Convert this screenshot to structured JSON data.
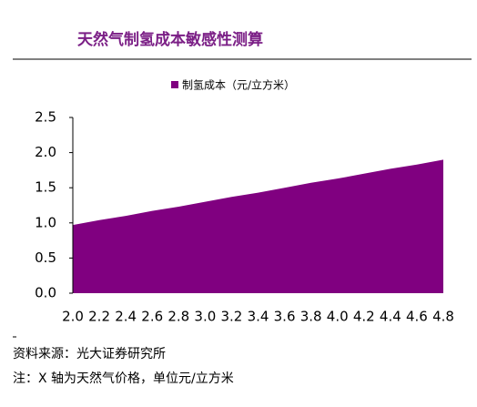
{
  "chart_data": {
    "type": "area",
    "title": "天然气制氢成本敏感性测算",
    "categories": [
      "2.0",
      "2.2",
      "2.4",
      "2.6",
      "2.8",
      "3.0",
      "3.2",
      "3.4",
      "3.6",
      "3.8",
      "4.0",
      "4.2",
      "4.4",
      "4.6",
      "4.8"
    ],
    "series": [
      {
        "name": "制氢成本（元/立方米）",
        "color": "#800080",
        "values": [
          0.97,
          1.04,
          1.1,
          1.17,
          1.23,
          1.3,
          1.37,
          1.43,
          1.5,
          1.57,
          1.63,
          1.7,
          1.77,
          1.83,
          1.9
        ]
      }
    ],
    "ylim": [
      0,
      2.5
    ],
    "yticks": [
      {
        "value": 0,
        "label": "0.0"
      },
      {
        "value": 0.5,
        "label": "0.5"
      },
      {
        "value": 1,
        "label": "1.0"
      },
      {
        "value": 1.5,
        "label": "1.5"
      },
      {
        "value": 2,
        "label": "2.0"
      },
      {
        "value": 2.5,
        "label": "2.5"
      }
    ],
    "grid": false,
    "legend": "top",
    "source": "资料来源：光大证券研究所",
    "note": "注：X 轴为天然气价格，单位元/立方米"
  }
}
